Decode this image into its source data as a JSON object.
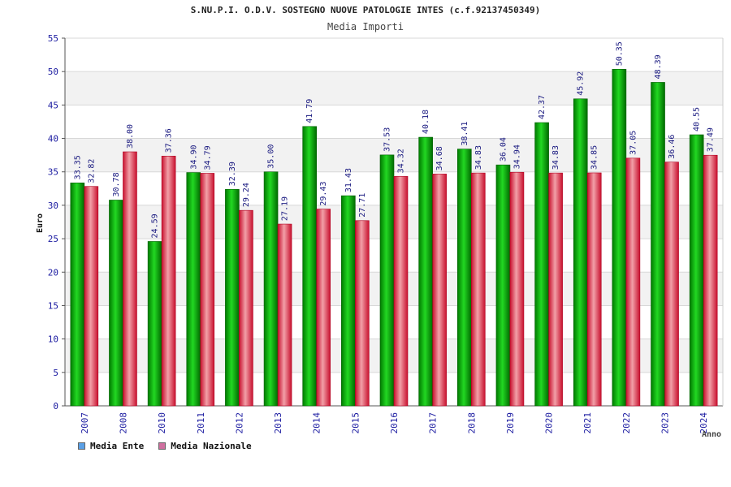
{
  "chart_data": {
    "type": "bar",
    "title": "S.NU.P.I. O.D.V. SOSTEGNO NUOVE PATOLOGIE INTES (c.f.92137450349)",
    "subtitle": "Media Importi",
    "xlabel": "Anno",
    "ylabel": "Euro",
    "ylim": [
      0,
      55
    ],
    "yticks": [
      0,
      5,
      10,
      15,
      20,
      25,
      30,
      35,
      40,
      45,
      50,
      55
    ],
    "categories": [
      "2007",
      "2008",
      "2010",
      "2011",
      "2012",
      "2013",
      "2014",
      "2015",
      "2016",
      "2017",
      "2018",
      "2019",
      "2020",
      "2021",
      "2022",
      "2023",
      "2024"
    ],
    "series": [
      {
        "name": "Media Ente",
        "values": [
          33.35,
          30.78,
          24.59,
          34.9,
          32.39,
          35.0,
          41.79,
          31.43,
          37.53,
          40.18,
          38.41,
          36.04,
          42.37,
          45.92,
          50.35,
          48.39,
          40.55
        ]
      },
      {
        "name": "Media Nazionale",
        "values": [
          32.82,
          38.0,
          37.36,
          34.79,
          29.24,
          27.19,
          29.43,
          27.71,
          34.32,
          34.68,
          34.83,
          34.94,
          34.83,
          34.85,
          37.05,
          36.46,
          37.49
        ]
      }
    ],
    "labels": [
      [
        "33.35",
        "30.78",
        "24.59",
        "34.90",
        "32.39",
        "35.00",
        "41.79",
        "31.43",
        "37.53",
        "40.18",
        "38.41",
        "36.04",
        "42.37",
        "45.92",
        "50.35",
        "48.39",
        "40.55"
      ],
      [
        "32.82",
        "38.00",
        "37.36",
        "34.79",
        "29.24",
        "27.19",
        "29.43",
        "27.71",
        "34.32",
        "34.68",
        "34.83",
        "34.94",
        "34.83",
        "34.85",
        "37.05",
        "36.46",
        "37.49"
      ]
    ],
    "legend_position": "bottom-left",
    "grid": true,
    "colors": {
      "ente": "#00b400",
      "nazionale": "#e8353f",
      "legend_ente": "#5aa0e6",
      "legend_nazionale": "#d070a0",
      "axis_text": "#1a1aa0",
      "band": "#f2f2f2"
    }
  }
}
